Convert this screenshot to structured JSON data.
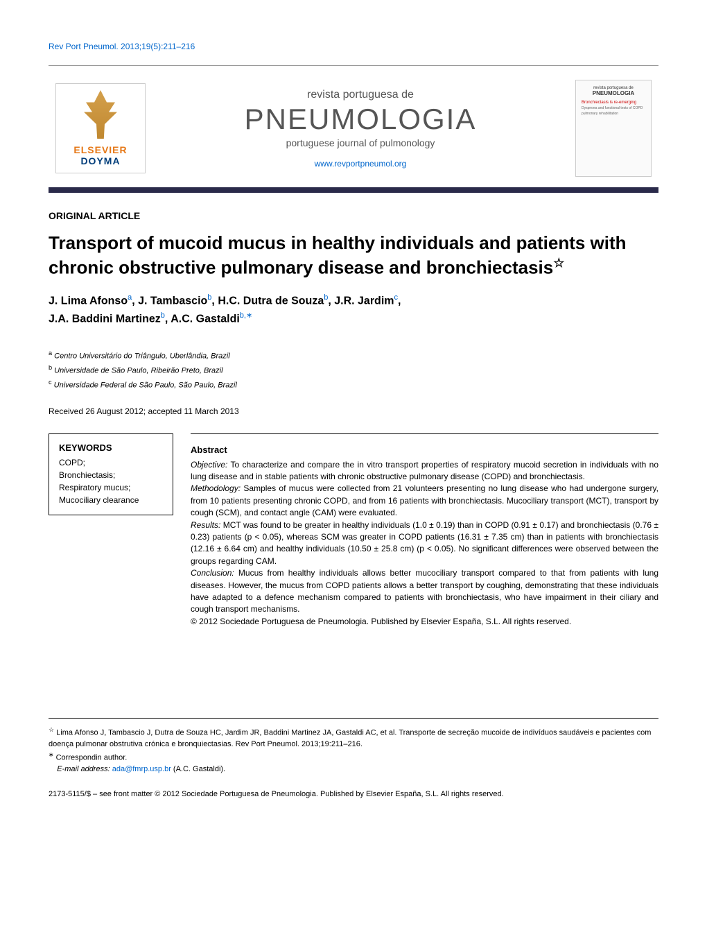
{
  "header": {
    "reference": "Rev Port Pneumol. 2013;19(5):211–216",
    "publisher_name_1": "ELSEVIER",
    "publisher_name_2": "DOYMA",
    "journal_subtitle_top": "revista portuguesa de",
    "journal_title": "PNEUMOLOGIA",
    "journal_subtitle_bot": "portuguese journal of pulmonology",
    "journal_url": "www.revportpneumol.org",
    "cover_subtitle": "revista portuguesa de",
    "cover_title": "PNEUMOLOGIA",
    "cover_bronch": "Bronchiectasis is re-emerging"
  },
  "article": {
    "type": "ORIGINAL ARTICLE",
    "title": "Transport of mucoid mucus in healthy individuals and patients with chronic obstructive pulmonary disease and bronchiectasis",
    "title_star": "☆",
    "authors_html": "J. Lima Afonso|a|, J. Tambascio|b|, H.C. Dutra de Souza|b|, J.R. Jardim|c|, J.A. Baddini Martinez|b|, A.C. Gastaldi|b,*|",
    "authors": [
      {
        "name": "J. Lima Afonso",
        "sup": "a"
      },
      {
        "name": "J. Tambascio",
        "sup": "b"
      },
      {
        "name": "H.C. Dutra de Souza",
        "sup": "b"
      },
      {
        "name": "J.R. Jardim",
        "sup": "c"
      },
      {
        "name": "J.A. Baddini Martinez",
        "sup": "b"
      },
      {
        "name": "A.C. Gastaldi",
        "sup": "b,∗"
      }
    ],
    "affiliations": [
      {
        "sup": "a",
        "text": "Centro Universitário do Triângulo, Uberlândia, Brazil"
      },
      {
        "sup": "b",
        "text": "Universidade de São Paulo, Ribeirão Preto, Brazil"
      },
      {
        "sup": "c",
        "text": "Universidade Federal de São Paulo, São Paulo, Brazil"
      }
    ],
    "received": "Received 26 August 2012; accepted 11 March 2013"
  },
  "keywords": {
    "title": "KEYWORDS",
    "items": "COPD;\nBronchiectasis;\nRespiratory mucus;\nMucociliary clearance"
  },
  "abstract": {
    "title": "Abstract",
    "objective_label": "Objective:",
    "objective": " To characterize and compare the in vitro transport properties of respiratory mucoid secretion in individuals with no lung disease and in stable patients with chronic obstructive pulmonary disease (COPD) and bronchiectasis.",
    "methodology_label": "Methodology:",
    "methodology": " Samples of mucus were collected from 21 volunteers presenting no lung disease who had undergone surgery, from 10 patients presenting chronic COPD, and from 16 patients with bronchiectasis. Mucociliary transport (MCT), transport by cough (SCM), and contact angle (CAM) were evaluated.",
    "results_label": "Results:",
    "results": " MCT was found to be greater in healthy individuals (1.0 ± 0.19) than in COPD (0.91 ± 0.17) and bronchiectasis (0.76 ± 0.23) patients (p < 0.05), whereas SCM was greater in COPD patients (16.31 ± 7.35 cm) than in patients with bronchiectasis (12.16 ± 6.64 cm) and healthy individuals (10.50 ± 25.8 cm) (p < 0.05). No significant differences were observed between the groups regarding CAM.",
    "conclusion_label": "Conclusion:",
    "conclusion": " Mucus from healthy individuals allows better mucociliary transport compared to that from patients with lung diseases. However, the mucus from COPD patients allows a better transport by coughing, demonstrating that these individuals have adapted to a defence mechanism compared to patients with bronchiectasis, who have impairment in their ciliary and cough transport mechanisms.",
    "copyright": "© 2012 Sociedade Portuguesa de Pneumologia. Published by Elsevier España, S.L. All rights reserved."
  },
  "footer": {
    "note_star": "☆",
    "note": " Lima Afonso J, Tambascio J, Dutra de Souza HC, Jardim JR, Baddini Martinez JA, Gastaldi AC, et al. Transporte de secreção mucoide de indivíduos saudáveis e pacientes com doença pulmonar obstrutiva crónica e bronquiectasias. Rev Port Pneumol. 2013;19:211–216.",
    "correspond_star": "∗",
    "correspond": " Correspondin author.",
    "email_label": "E-mail address: ",
    "email": "ada@fmrp.usp.br",
    "email_author": " (A.C. Gastaldi).",
    "copyright": "2173-5115/$ – see front matter © 2012 Sociedade Portuguesa de Pneumologia. Published by Elsevier España, S.L. All rights reserved."
  },
  "colors": {
    "link": "#0066cc",
    "banner_bar": "#2a2a4a",
    "elsevier_orange": "#e67817",
    "doyma_blue": "#003d7a"
  }
}
